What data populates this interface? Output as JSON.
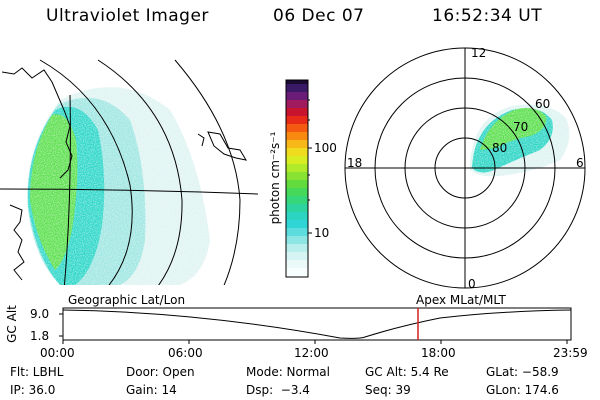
{
  "header": {
    "instrument": "Ultraviolet Imager",
    "date": "06 Dec 07",
    "time": "16:52:34 UT"
  },
  "colorbar": {
    "label": "photon cm⁻²s⁻¹",
    "ticks": [
      "100",
      "10"
    ]
  },
  "polar_plot": {
    "mlt_labels": [
      "12",
      "18",
      "6",
      "0"
    ],
    "lat_labels": [
      "60",
      "70",
      "80"
    ]
  },
  "map_titles": {
    "geographic": "Geographic Lat/Lon",
    "apex": "Apex MLat/MLT"
  },
  "altitude_plot": {
    "ylabel": "GC Alt",
    "yticks": [
      "9.0",
      "1.8"
    ],
    "xticks": [
      "00:00",
      "06:00",
      "12:00",
      "18:00",
      "23:59"
    ],
    "marker_time": "16:52",
    "marker_color": "#d42020"
  },
  "info": {
    "flt": "Flt: LBHL",
    "door": "Door: Open",
    "mode": "Mode: Normal",
    "gc_alt": "GC Alt: 5.4 Re",
    "glat": "GLat: −58.9",
    "ip": "IP: 36.0",
    "gain": "Gain: 14",
    "dsp": "Dsp:  −3.4",
    "seq": "Seq: 39",
    "glon": "GLon: 174.6"
  }
}
